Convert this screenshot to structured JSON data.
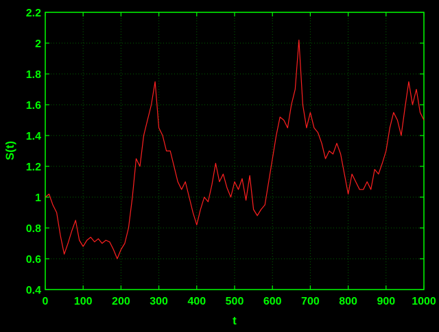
{
  "chart_data": {
    "type": "line",
    "title": "",
    "xlabel": "t",
    "ylabel": "S(t)",
    "xlim": [
      0,
      1000
    ],
    "ylim": [
      0.4,
      2.2
    ],
    "xticks": [
      0,
      100,
      200,
      300,
      400,
      500,
      600,
      700,
      800,
      900,
      1000
    ],
    "yticks": [
      0.4,
      0.6,
      0.8,
      1.0,
      1.2,
      1.4,
      1.6,
      1.8,
      2.0,
      2.2
    ],
    "xtick_labels": [
      "0",
      "100",
      "200",
      "300",
      "400",
      "500",
      "600",
      "700",
      "800",
      "900",
      "1000"
    ],
    "ytick_labels": [
      "0.4",
      "0.6",
      "0.8",
      "1",
      "1.2",
      "1.4",
      "1.6",
      "1.8",
      "2",
      "2.2"
    ],
    "grid": true,
    "colors": {
      "background": "#000000",
      "axes": "#00ff00",
      "grid": "#006600",
      "text": "#00ff00",
      "series": "#ff2020"
    },
    "series": [
      {
        "name": "",
        "x": [
          0,
          10,
          20,
          30,
          40,
          50,
          60,
          70,
          80,
          90,
          100,
          110,
          120,
          130,
          140,
          150,
          160,
          170,
          180,
          190,
          200,
          210,
          220,
          230,
          240,
          250,
          260,
          270,
          280,
          290,
          300,
          310,
          320,
          330,
          340,
          350,
          360,
          370,
          380,
          390,
          400,
          410,
          420,
          430,
          440,
          450,
          460,
          470,
          480,
          490,
          500,
          510,
          520,
          530,
          540,
          550,
          560,
          570,
          580,
          590,
          600,
          610,
          620,
          630,
          640,
          650,
          660,
          670,
          680,
          690,
          700,
          710,
          720,
          730,
          740,
          750,
          760,
          770,
          780,
          790,
          800,
          810,
          820,
          830,
          840,
          850,
          860,
          870,
          880,
          890,
          900,
          910,
          920,
          930,
          940,
          950,
          960,
          970,
          980,
          990,
          1000
        ],
        "values": [
          1.0,
          1.02,
          0.95,
          0.9,
          0.75,
          0.63,
          0.7,
          0.78,
          0.85,
          0.72,
          0.68,
          0.72,
          0.74,
          0.71,
          0.73,
          0.7,
          0.72,
          0.71,
          0.66,
          0.6,
          0.66,
          0.7,
          0.8,
          1.0,
          1.25,
          1.2,
          1.4,
          1.5,
          1.6,
          1.75,
          1.45,
          1.4,
          1.3,
          1.3,
          1.2,
          1.1,
          1.05,
          1.1,
          1.0,
          0.9,
          0.82,
          0.92,
          1.0,
          0.97,
          1.08,
          1.22,
          1.1,
          1.15,
          1.06,
          1.0,
          1.1,
          1.05,
          1.12,
          0.98,
          1.14,
          0.92,
          0.88,
          0.92,
          0.95,
          1.1,
          1.25,
          1.4,
          1.52,
          1.5,
          1.45,
          1.6,
          1.7,
          2.02,
          1.6,
          1.45,
          1.55,
          1.45,
          1.42,
          1.35,
          1.25,
          1.3,
          1.28,
          1.35,
          1.28,
          1.15,
          1.02,
          1.15,
          1.1,
          1.05,
          1.05,
          1.1,
          1.05,
          1.18,
          1.15,
          1.22,
          1.3,
          1.45,
          1.55,
          1.5,
          1.4,
          1.58,
          1.75,
          1.6,
          1.7,
          1.55,
          1.5
        ]
      }
    ]
  }
}
